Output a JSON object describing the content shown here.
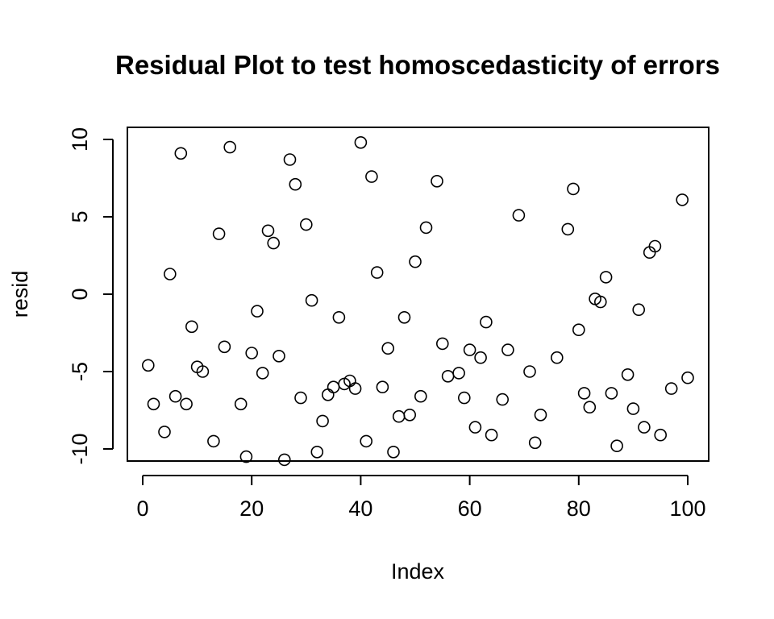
{
  "chart_data": {
    "type": "scatter",
    "title": "Residual Plot to test homoscedasticity of errors",
    "xlabel": "Index",
    "ylabel": "resid",
    "xlim": [
      0,
      100
    ],
    "ylim": [
      -10.8,
      10.8
    ],
    "x_ticks": [
      0,
      20,
      40,
      60,
      80,
      100
    ],
    "y_ticks": [
      -10,
      -5,
      0,
      5,
      10
    ],
    "x_tick_labels": [
      "0",
      "20",
      "40",
      "60",
      "80",
      "100"
    ],
    "y_tick_labels": [
      "-10",
      "-5",
      "0",
      "5",
      "10"
    ],
    "grid": false,
    "marker": "open-circle",
    "series": [
      {
        "x": [
          1,
          2,
          4,
          5,
          6,
          7,
          8,
          9,
          10,
          11,
          13,
          14,
          15,
          16,
          18,
          19,
          20,
          21,
          22,
          23,
          24,
          25,
          26,
          27,
          28,
          29,
          30,
          31,
          32,
          33,
          34,
          35,
          36,
          37,
          38,
          39,
          40,
          41,
          42,
          43,
          44,
          45,
          46,
          47,
          48,
          49,
          50,
          51,
          52,
          54,
          55,
          56,
          58,
          59,
          60,
          61,
          62,
          63,
          64,
          66,
          67,
          69,
          71,
          72,
          73,
          76,
          78,
          79,
          80,
          81,
          82,
          83,
          84,
          85,
          86,
          87,
          89,
          90,
          91,
          92,
          93,
          94,
          95,
          97,
          99,
          100
        ],
        "y": [
          -4.6,
          -7.1,
          -8.9,
          1.3,
          -6.6,
          9.1,
          -7.1,
          -2.1,
          -4.7,
          -5.0,
          -9.5,
          3.9,
          -3.4,
          9.5,
          -7.1,
          -10.5,
          -3.8,
          -1.1,
          -5.1,
          4.1,
          3.3,
          -4.0,
          -10.7,
          8.7,
          7.1,
          -6.7,
          4.5,
          -0.4,
          -10.2,
          -8.2,
          -6.5,
          -6.0,
          -1.5,
          -5.8,
          -5.6,
          -6.1,
          9.8,
          -9.5,
          7.6,
          1.4,
          -6.0,
          -3.5,
          -10.2,
          -7.9,
          -1.5,
          -7.8,
          2.1,
          -6.6,
          4.3,
          7.3,
          -3.2,
          -5.3,
          -5.1,
          -6.7,
          -3.6,
          -8.6,
          -4.1,
          -1.8,
          -9.1,
          -6.8,
          -3.6,
          5.1,
          -5.0,
          -9.6,
          -7.8,
          -4.1,
          4.2,
          6.8,
          -2.3,
          -6.4,
          -7.3,
          -0.3,
          -0.5,
          1.1,
          -6.4,
          -9.8,
          -5.2,
          -7.4,
          -1.0,
          -8.6,
          2.7,
          3.1,
          -9.1,
          -6.1,
          6.1,
          -5.4
        ]
      }
    ]
  }
}
